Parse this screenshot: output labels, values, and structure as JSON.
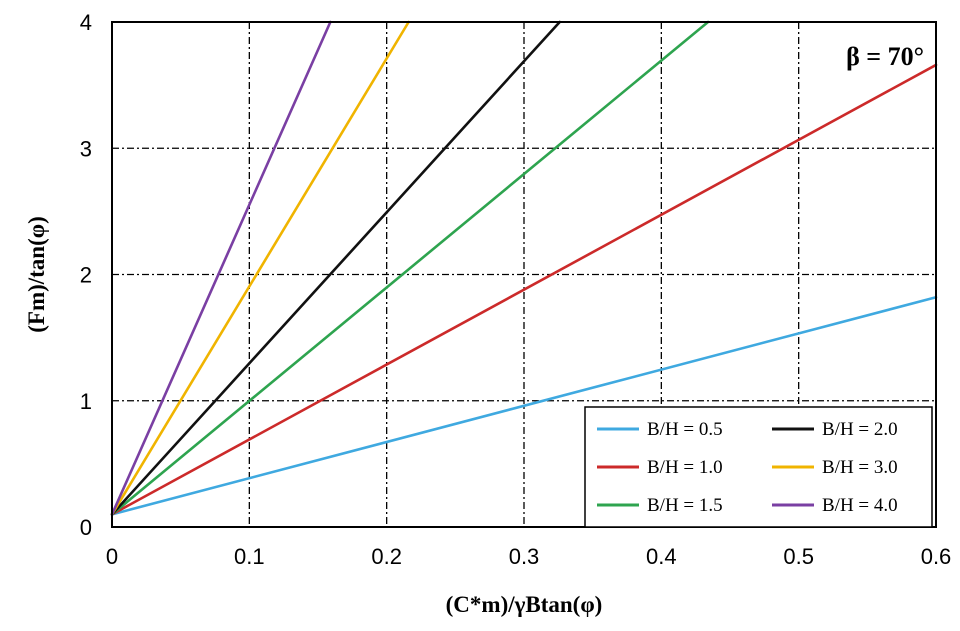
{
  "chart_data": {
    "type": "line",
    "title": "",
    "xlabel": "(C*m)/γBtan(φ)",
    "ylabel": "(Fm)/tan(φ)",
    "xlim": [
      0,
      0.6
    ],
    "ylim": [
      0,
      4
    ],
    "xticks": [
      0,
      0.1,
      0.2,
      0.3,
      0.4,
      0.5,
      0.6
    ],
    "xtick_labels": [
      "0",
      "0.1",
      "0.2",
      "0.3",
      "0.4",
      "0.5",
      "0.6"
    ],
    "yticks": [
      0,
      1,
      2,
      3,
      4
    ],
    "ytick_labels": [
      "0",
      "1",
      "2",
      "3",
      "4"
    ],
    "grid": true,
    "legend_position": "bottom-right",
    "annotation": "β = 70°",
    "series": [
      {
        "name": "B/H = 0.5",
        "color": "#3fa9e0",
        "x": [
          0,
          0.6
        ],
        "y": [
          0.1,
          1.82
        ]
      },
      {
        "name": "B/H = 1.0",
        "color": "#cc2a2a",
        "x": [
          0,
          0.6
        ],
        "y": [
          0.1,
          3.66
        ]
      },
      {
        "name": "B/H = 1.5",
        "color": "#2ea44f",
        "x": [
          0,
          0.434
        ],
        "y": [
          0.1,
          4.0
        ]
      },
      {
        "name": "B/H = 2.0",
        "color": "#111111",
        "x": [
          0,
          0.326
        ],
        "y": [
          0.1,
          4.0
        ]
      },
      {
        "name": "B/H = 3.0",
        "color": "#f0b400",
        "x": [
          0,
          0.216
        ],
        "y": [
          0.1,
          4.0
        ]
      },
      {
        "name": "B/H = 4.0",
        "color": "#7a3fa3",
        "x": [
          0,
          0.159
        ],
        "y": [
          0.1,
          4.0
        ]
      }
    ]
  }
}
